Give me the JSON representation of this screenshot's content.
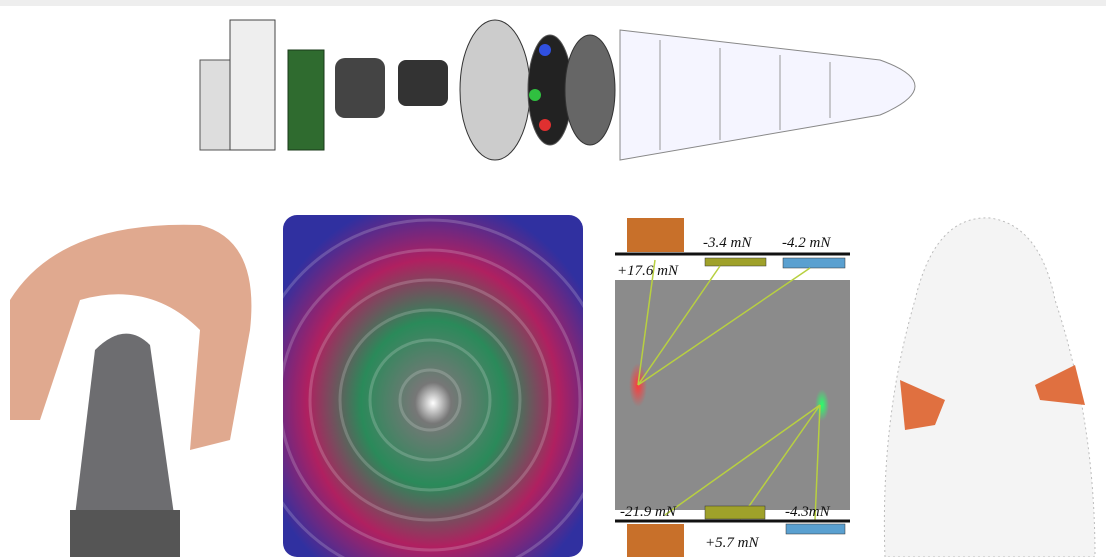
{
  "force_map": {
    "top_labels": [
      "-3.4 mN",
      "-4.2 mN",
      "+17.6 mN"
    ],
    "bottom_labels": [
      "-21.9 mN",
      "+5.7 mN",
      "-4.3mN"
    ]
  }
}
